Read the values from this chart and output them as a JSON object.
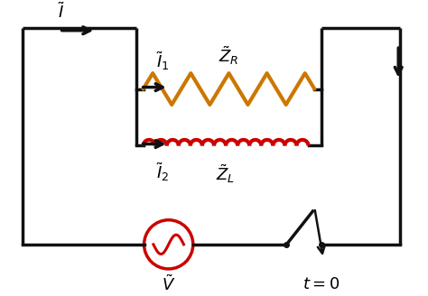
{
  "bg_color": "#ffffff",
  "wire_color": "#111111",
  "resistor_color": "#cc7700",
  "inductor_color": "#cc0000",
  "source_color": "#cc0000",
  "lw": 2.5,
  "fig_w": 4.74,
  "fig_h": 3.28
}
